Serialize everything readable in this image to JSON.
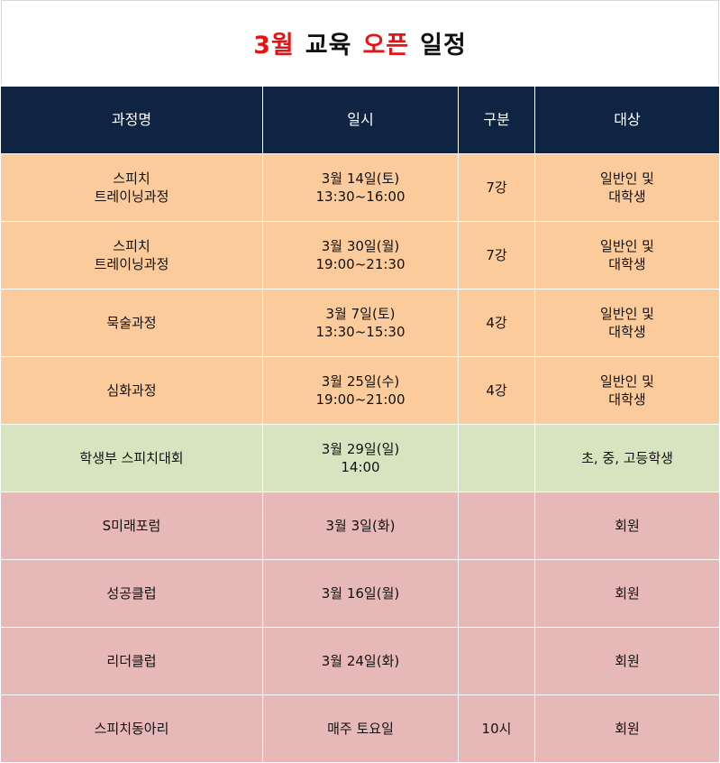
{
  "title": {
    "part1": "3월",
    "part2": "교육",
    "part3": "오픈",
    "part4": "일정",
    "accent_color": "#e31414"
  },
  "headers": [
    "과정명",
    "일시",
    "구분",
    "대상"
  ],
  "rows": [
    {
      "style": "orange",
      "name": [
        "스피치",
        "트레이닝과정"
      ],
      "date": [
        "3월 14일(토)",
        "13:30~16:00"
      ],
      "type": "7강",
      "target": [
        "일반인 및",
        "대학생"
      ]
    },
    {
      "style": "orange",
      "name": [
        "스피치",
        "트레이닝과정"
      ],
      "date": [
        "3월 30일(월)",
        "19:00~21:30"
      ],
      "type": "7강",
      "target": [
        "일반인 및",
        "대학생"
      ]
    },
    {
      "style": "orange",
      "name": [
        "묵술과정"
      ],
      "date": [
        "3월 7일(토)",
        "13:30~15:30"
      ],
      "type": "4강",
      "target": [
        "일반인 및",
        "대학생"
      ]
    },
    {
      "style": "orange",
      "name": [
        "심화과정"
      ],
      "date": [
        "3월 25일(수)",
        "19:00~21:00"
      ],
      "type": "4강",
      "target": [
        "일반인 및",
        "대학생"
      ]
    },
    {
      "style": "green",
      "name": [
        "학생부 스피치대회"
      ],
      "date": [
        "3월 29일(일)",
        "14:00"
      ],
      "type": "",
      "target": [
        "초, 중, 고등학생"
      ]
    },
    {
      "style": "pink",
      "name": [
        "S미래포럼"
      ],
      "date": [
        "3월 3일(화)"
      ],
      "type": "",
      "target": [
        "회원"
      ]
    },
    {
      "style": "pink",
      "name": [
        "성공클럽"
      ],
      "date": [
        "3월 16일(월)"
      ],
      "type": "",
      "target": [
        "회원"
      ]
    },
    {
      "style": "pink",
      "name": [
        "리더클럽"
      ],
      "date": [
        "3월 24일(화)"
      ],
      "type": "",
      "target": [
        "회원"
      ]
    },
    {
      "style": "pink",
      "name": [
        "스피치동아리"
      ],
      "date": [
        "매주 토요일"
      ],
      "type": "10시",
      "target": [
        "회원"
      ]
    }
  ],
  "colors": {
    "header_bg": "#0f2442",
    "orange": "#fbcb9b",
    "green": "#d7e4c0",
    "pink": "#e6b8b8"
  }
}
